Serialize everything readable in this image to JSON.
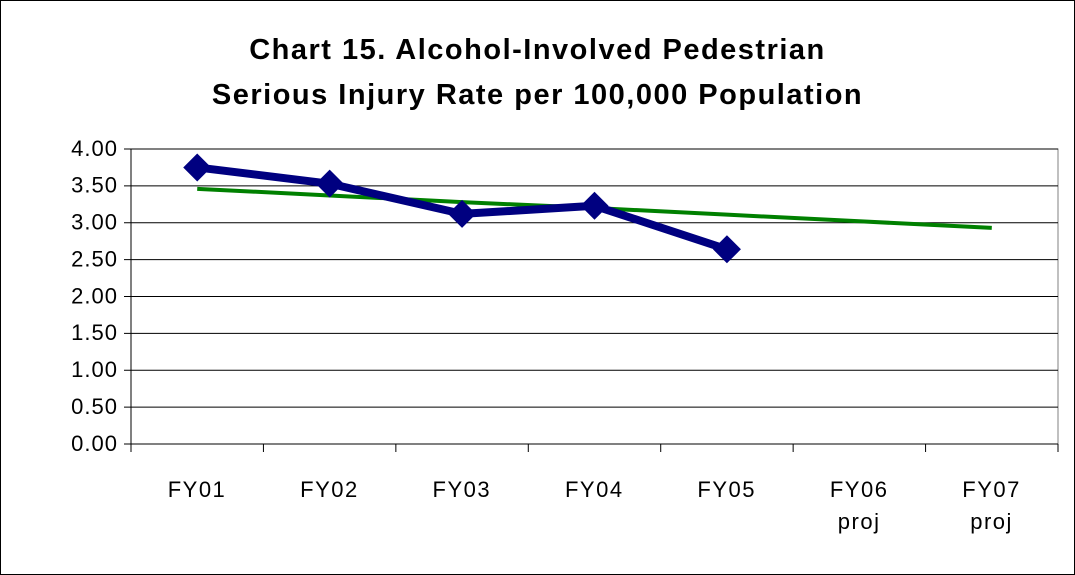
{
  "chart_data": {
    "type": "line",
    "title": "Chart 15. Alcohol-Involved Pedestrian\nSerious Injury Rate per 100,000 Population",
    "categories": [
      "FY01",
      "FY02",
      "FY03",
      "FY04",
      "FY05",
      "FY06\nproj",
      "FY07\nproj"
    ],
    "series": [
      {
        "color": "#000080",
        "marker": "diamond",
        "values": [
          3.75,
          3.53,
          3.12,
          3.23,
          2.64,
          null,
          null
        ]
      },
      {
        "color": "#008000",
        "values": [
          3.46,
          3.37,
          3.28,
          3.2,
          3.11,
          3.02,
          2.93
        ]
      }
    ],
    "ylim": [
      0,
      4
    ],
    "yticks": [
      {
        "value": 0,
        "label": "0.00"
      },
      {
        "value": 0.5,
        "label": "0.50"
      },
      {
        "value": 1,
        "label": "1.00"
      },
      {
        "value": 1.5,
        "label": "1.50"
      },
      {
        "value": 2,
        "label": "2.00"
      },
      {
        "value": 2.5,
        "label": "2.50"
      },
      {
        "value": 3,
        "label": "3.00"
      },
      {
        "value": 3.5,
        "label": "3.50"
      },
      {
        "value": 4,
        "label": "4.00"
      }
    ],
    "grid": true
  }
}
